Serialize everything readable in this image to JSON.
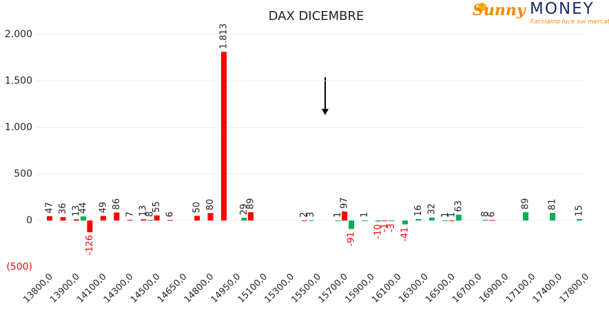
{
  "logo": {
    "brand": "Sunny",
    "name": "MONEY",
    "tagline": "Facciamo luce sui mercati"
  },
  "chart_data": {
    "type": "bar",
    "title": "DAX DICEMBRE",
    "categories": [
      "13800,0",
      null,
      "13900,0",
      null,
      "14100,0",
      null,
      "14300,0",
      null,
      "14500,0",
      null,
      "14650,0",
      null,
      "14800,0",
      null,
      "14950,0",
      null,
      "15100,0",
      null,
      "15300,0",
      null,
      "15500,0",
      null,
      "15700,0",
      null,
      "15900,0",
      null,
      "16100,0",
      null,
      "16300,0",
      null,
      "16500,0",
      null,
      "16700,0",
      null,
      "16900,0",
      null,
      "17100,0",
      null,
      "17400,0",
      null,
      "17800,0"
    ],
    "series": [
      {
        "color": "#ff0000",
        "values": [
          47,
          36,
          13,
          -126,
          49,
          86,
          7,
          13,
          55,
          6,
          null,
          50,
          80,
          1813,
          null,
          89,
          null,
          null,
          null,
          2,
          null,
          null,
          97,
          null,
          null,
          -1,
          null,
          null,
          null,
          null,
          1,
          null,
          null,
          6,
          null,
          null,
          null,
          null,
          null,
          null,
          null
        ],
        "value_labels": [
          "47",
          "36",
          "13",
          "-126",
          "49",
          "86",
          "7",
          "13",
          "55",
          "6",
          null,
          "50",
          "80",
          "1.813",
          null,
          "89",
          null,
          null,
          null,
          "2",
          null,
          null,
          "97",
          null,
          null,
          "-1",
          null,
          null,
          null,
          null,
          "1",
          null,
          null,
          "6",
          null,
          null,
          null,
          null,
          null,
          null,
          null
        ]
      },
      {
        "color": "#00b050",
        "values": [
          null,
          null,
          44,
          null,
          null,
          null,
          null,
          8,
          null,
          null,
          null,
          null,
          null,
          null,
          29,
          null,
          null,
          null,
          null,
          3,
          null,
          1,
          -91,
          1,
          -10,
          -3,
          -41,
          16,
          32,
          1,
          63,
          null,
          8,
          null,
          null,
          89,
          null,
          81,
          null,
          15,
          null
        ]
      }
    ],
    "negative_label_color": "#ff0000",
    "ylim": [
      -500,
      2000
    ],
    "yticks": [
      {
        "value": -500,
        "label": "(500)"
      },
      0,
      500,
      {
        "value": 1000,
        "label": "1.000"
      },
      {
        "value": 1500,
        "label": "1.500"
      },
      {
        "value": 2000,
        "label": "2.000"
      }
    ],
    "grid": true
  }
}
